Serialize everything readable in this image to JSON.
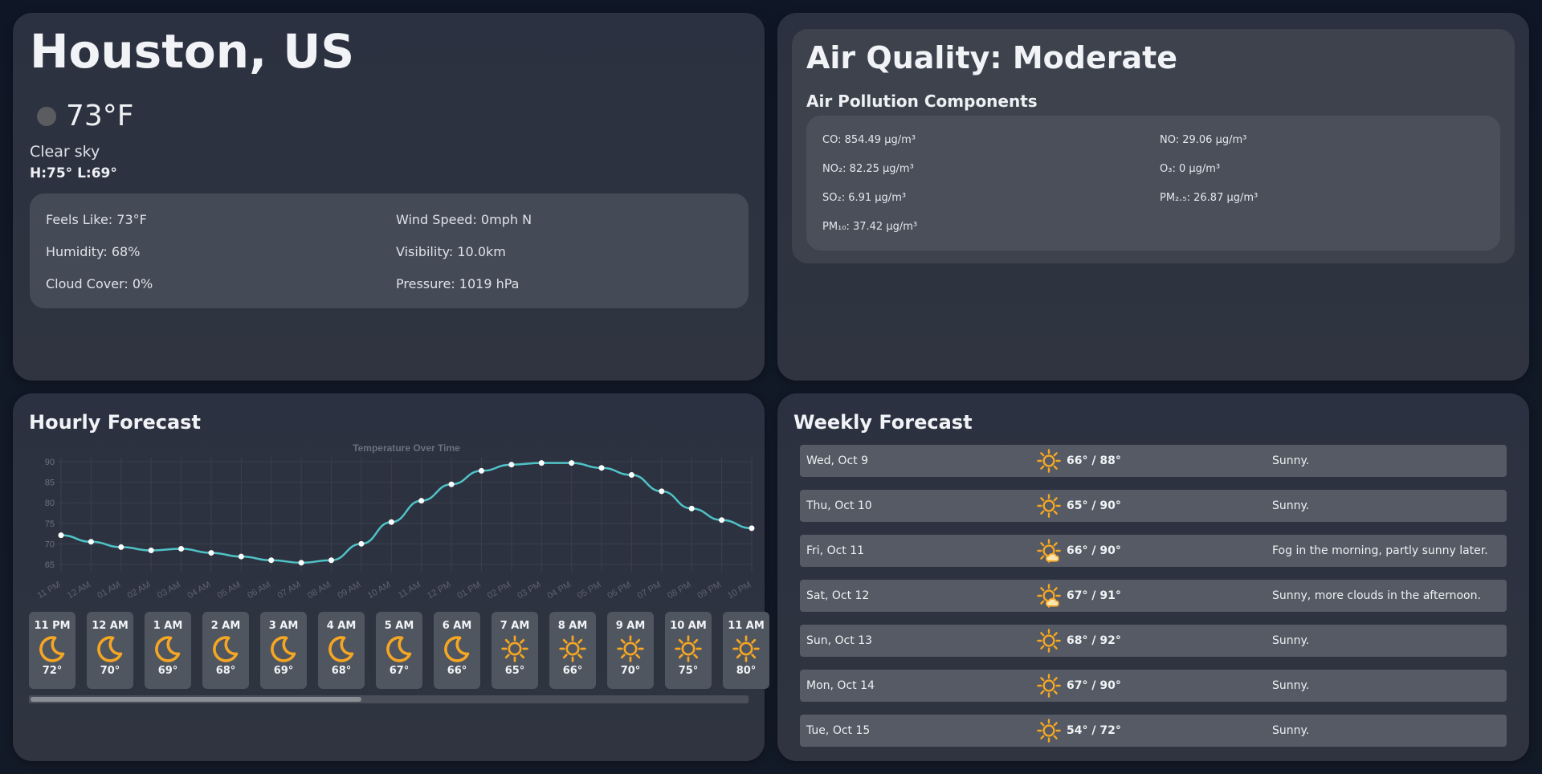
{
  "current": {
    "city": "Houston, US",
    "temp": "73°F",
    "description": "Clear sky",
    "high_low": "H:75°   L:69°",
    "details": [
      "Feels Like: 73°F",
      "Wind Speed: 0mph N",
      "Humidity: 68%",
      "Visibility: 10.0km",
      "Cloud Cover: 0%",
      "Pressure: 1019 hPa"
    ],
    "icon": "moon-dot-icon"
  },
  "air": {
    "title": "Air Quality: Moderate",
    "subtitle": "Air Pollution Components",
    "components": [
      "CO: 854.49 μg/m³",
      "NO: 29.06 μg/m³",
      "NO₂: 82.25 μg/m³",
      "O₃: 0 μg/m³",
      "SO₂: 6.91 μg/m³",
      "PM₂.₅: 26.87 μg/m³",
      "PM₁₀: 37.42 μg/m³"
    ]
  },
  "hourly": {
    "title": "Hourly Forecast",
    "cards": [
      {
        "time": "11 PM",
        "temp": "72°",
        "icon": "moon"
      },
      {
        "time": "12 AM",
        "temp": "70°",
        "icon": "moon"
      },
      {
        "time": "1 AM",
        "temp": "69°",
        "icon": "moon"
      },
      {
        "time": "2 AM",
        "temp": "68°",
        "icon": "moon"
      },
      {
        "time": "3 AM",
        "temp": "69°",
        "icon": "moon"
      },
      {
        "time": "4 AM",
        "temp": "68°",
        "icon": "moon"
      },
      {
        "time": "5 AM",
        "temp": "67°",
        "icon": "moon"
      },
      {
        "time": "6 AM",
        "temp": "66°",
        "icon": "moon"
      },
      {
        "time": "7 AM",
        "temp": "65°",
        "icon": "sun"
      },
      {
        "time": "8 AM",
        "temp": "66°",
        "icon": "sun"
      },
      {
        "time": "9 AM",
        "temp": "70°",
        "icon": "sun"
      },
      {
        "time": "10 AM",
        "temp": "75°",
        "icon": "sun"
      },
      {
        "time": "11 AM",
        "temp": "80°",
        "icon": "sun"
      }
    ],
    "scroll_fraction": 0.46
  },
  "chart_data": {
    "type": "line",
    "title": "Temperature Over Time",
    "categories": [
      "11 PM",
      "12 AM",
      "01 AM",
      "02 AM",
      "03 AM",
      "04 AM",
      "05 AM",
      "06 AM",
      "07 AM",
      "08 AM",
      "09 AM",
      "10 AM",
      "11 AM",
      "12 PM",
      "01 PM",
      "02 PM",
      "03 PM",
      "04 PM",
      "05 PM",
      "06 PM",
      "07 PM",
      "08 PM",
      "09 PM",
      "10 PM"
    ],
    "values": [
      72.1,
      70.5,
      69.2,
      68.4,
      68.8,
      67.8,
      66.9,
      66.0,
      65.4,
      66.0,
      70.0,
      75.3,
      80.5,
      84.5,
      87.8,
      89.3,
      89.7,
      89.7,
      88.5,
      86.8,
      82.8,
      78.6,
      75.8,
      73.8
    ],
    "yticks": [
      65,
      70,
      75,
      80,
      85,
      90
    ],
    "ylim": [
      64,
      91
    ],
    "grid": true,
    "line_color": "#4fc3c7"
  },
  "weekly": {
    "title": "Weekly Forecast",
    "days": [
      {
        "date": "Wed, Oct 9",
        "temps": "66° / 88°",
        "summary": "Sunny.",
        "icon": "sun"
      },
      {
        "date": "Thu, Oct 10",
        "temps": "65° / 90°",
        "summary": "Sunny.",
        "icon": "sun"
      },
      {
        "date": "Fri, Oct 11",
        "temps": "66° / 90°",
        "summary": "Fog in the morning, partly sunny later.",
        "icon": "sun-cloud"
      },
      {
        "date": "Sat, Oct 12",
        "temps": "67° / 91°",
        "summary": "Sunny, more clouds in the afternoon.",
        "icon": "sun-cloud"
      },
      {
        "date": "Sun, Oct 13",
        "temps": "68° / 92°",
        "summary": "Sunny.",
        "icon": "sun"
      },
      {
        "date": "Mon, Oct 14",
        "temps": "67° / 90°",
        "summary": "Sunny.",
        "icon": "sun"
      },
      {
        "date": "Tue, Oct 15",
        "temps": "54° / 72°",
        "summary": "Sunny.",
        "icon": "sun"
      }
    ]
  },
  "colors": {
    "accent": "#f5a623",
    "line": "#4fc3c7"
  }
}
